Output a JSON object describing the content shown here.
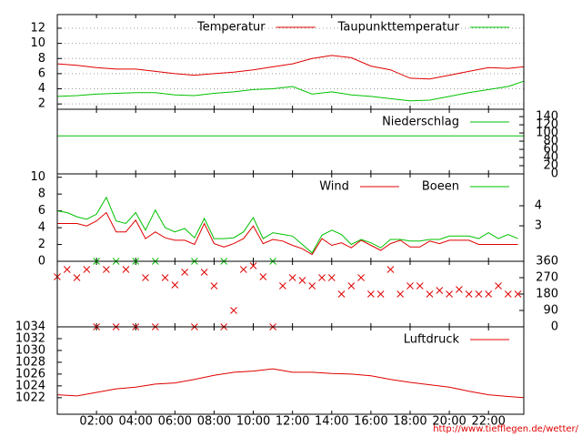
{
  "chart_data": [
    {
      "type": "line",
      "xlim": [
        0,
        23.8
      ],
      "ylim": [
        1.3,
        13.8
      ],
      "yticks": [
        2,
        4,
        6,
        8,
        10,
        12
      ],
      "grid": true,
      "x": [
        0,
        1,
        2,
        3,
        4,
        5,
        6,
        7,
        8,
        9,
        10,
        11,
        12,
        13,
        14,
        15,
        16,
        17,
        18,
        19,
        20,
        21,
        22,
        23,
        23.8
      ],
      "series": [
        {
          "name": "Temperatur",
          "color": "#e00000",
          "values": [
            7.3,
            7.1,
            6.8,
            6.6,
            6.6,
            6.3,
            6.0,
            5.8,
            6.0,
            6.2,
            6.5,
            6.9,
            7.3,
            8.0,
            8.4,
            8.1,
            7.0,
            6.5,
            5.4,
            5.3,
            5.8,
            6.3,
            6.8,
            6.7,
            6.9
          ]
        },
        {
          "name": "Taupunkttemperatur",
          "color": "#00c000",
          "values": [
            3.0,
            3.1,
            3.3,
            3.4,
            3.5,
            3.5,
            3.2,
            3.1,
            3.4,
            3.6,
            3.9,
            4.0,
            4.3,
            3.3,
            3.6,
            3.2,
            3.0,
            2.7,
            2.4,
            2.5,
            3.0,
            3.5,
            3.9,
            4.3,
            5.0
          ]
        }
      ]
    },
    {
      "type": "line",
      "xlim": [
        0,
        23.8
      ],
      "ylim": [
        0,
        158
      ],
      "yticks": [
        0,
        20,
        40,
        60,
        80,
        100,
        120,
        140
      ],
      "ytick_side": "right",
      "x": [
        0,
        23.8
      ],
      "series": [
        {
          "name": "Niederschlag",
          "color": "#00c000",
          "values": [
            93,
            93
          ]
        }
      ]
    },
    {
      "type": "line",
      "xlim": [
        0,
        23.8
      ],
      "ylim": [
        0,
        10.4
      ],
      "yticks": [
        0,
        2,
        4,
        6,
        8,
        10
      ],
      "y2lim": [
        1.23,
        5.59
      ],
      "y2ticks": [
        3,
        4
      ],
      "x": [
        0,
        0.5,
        1,
        1.5,
        2,
        2.5,
        3,
        3.5,
        4,
        4.5,
        5,
        5.5,
        6,
        6.5,
        7,
        7.5,
        8,
        8.5,
        9,
        9.5,
        10,
        10.5,
        11,
        11.5,
        12,
        12.5,
        13,
        13.5,
        14,
        14.5,
        15,
        15.5,
        16,
        16.5,
        17,
        17.5,
        18,
        18.5,
        19,
        19.5,
        20,
        20.5,
        21,
        21.5,
        22,
        22.5,
        23,
        23.5
      ],
      "series": [
        {
          "name": "Wind",
          "color": "#e00000",
          "values": [
            4.5,
            4.5,
            4.5,
            4.2,
            4.8,
            5.8,
            3.5,
            3.5,
            4.9,
            2.7,
            3.5,
            2.8,
            2.5,
            2.5,
            2.0,
            4.5,
            2.1,
            1.7,
            2.1,
            2.7,
            4.2,
            2.1,
            2.6,
            2.4,
            1.9,
            1.5,
            0.8,
            2.7,
            1.9,
            2.2,
            1.6,
            2.5,
            1.9,
            1.3,
            2.1,
            2.5,
            1.7,
            1.7,
            2.4,
            2.1,
            2.5,
            2.5,
            2.5,
            2.0,
            2.0,
            2.0,
            2.0,
            2.0
          ]
        },
        {
          "name": "Boeen",
          "color": "#00c000",
          "values": [
            6.0,
            5.8,
            5.3,
            5.0,
            5.6,
            7.6,
            4.8,
            4.5,
            5.8,
            3.7,
            6.1,
            4.0,
            3.5,
            3.9,
            2.8,
            5.1,
            2.7,
            2.7,
            2.8,
            3.5,
            5.2,
            2.7,
            3.4,
            3.2,
            3.0,
            2.0,
            1.0,
            3.1,
            3.7,
            3.2,
            2.0,
            2.6,
            2.2,
            1.6,
            2.6,
            2.6,
            2.4,
            2.4,
            2.6,
            2.6,
            3.0,
            3.0,
            3.0,
            2.7,
            3.4,
            2.7,
            3.2,
            2.7
          ]
        }
      ]
    },
    {
      "type": "scatter",
      "xlim": [
        0,
        23.8
      ],
      "ylim": [
        0,
        360
      ],
      "yticks": [
        0,
        90,
        180,
        270,
        360
      ],
      "ytick_side": "right",
      "series": [
        {
          "color": "#e00000",
          "x": [
            0,
            0.5,
            1,
            1.5,
            2,
            2.5,
            3,
            3.5,
            4,
            4.5,
            5,
            5.5,
            6,
            6.5,
            7,
            7.5,
            8,
            8.5,
            9,
            9.5,
            10,
            10.5,
            11,
            11.5,
            12,
            12.5,
            13,
            13.5,
            14,
            14.5,
            15,
            15.5,
            16,
            16.5,
            17,
            17.5,
            18,
            18.5,
            19,
            19.5,
            20,
            20.5,
            21,
            21.5,
            22,
            22.5,
            23,
            23.5
          ],
          "values": [
            275,
            315,
            270,
            315,
            0,
            315,
            0,
            315,
            0,
            270,
            0,
            270,
            230,
            300,
            0,
            300,
            225,
            0,
            90,
            315,
            335,
            275,
            0,
            225,
            270,
            255,
            225,
            270,
            270,
            180,
            225,
            270,
            180,
            180,
            315,
            180,
            225,
            225,
            180,
            200,
            180,
            205,
            180,
            180,
            180,
            225,
            180,
            180
          ]
        },
        {
          "color": "#00c000",
          "x": [
            2,
            3,
            4,
            5,
            7,
            8.5,
            11
          ],
          "values": [
            360,
            360,
            360,
            360,
            360,
            360,
            360
          ]
        }
      ]
    },
    {
      "type": "line",
      "xlim": [
        0,
        23.8
      ],
      "ylim": [
        1019.2,
        1034
      ],
      "yticks": [
        1022,
        1024,
        1026,
        1028,
        1030,
        1032,
        1034
      ],
      "x": [
        0,
        1,
        2,
        3,
        4,
        5,
        6,
        7,
        8,
        9,
        10,
        11,
        12,
        13,
        14,
        15,
        16,
        17,
        18,
        19,
        20,
        21,
        22,
        23,
        23.8
      ],
      "xticks": [
        {
          "value": 2,
          "label": "02:00"
        },
        {
          "value": 4,
          "label": "04:00"
        },
        {
          "value": 6,
          "label": "06:00"
        },
        {
          "value": 8,
          "label": "08:00"
        },
        {
          "value": 10,
          "label": "10:00"
        },
        {
          "value": 12,
          "label": "12:00"
        },
        {
          "value": 14,
          "label": "14:00"
        },
        {
          "value": 16,
          "label": "16:00"
        },
        {
          "value": 18,
          "label": "18:00"
        },
        {
          "value": 20,
          "label": "20:00"
        },
        {
          "value": 22,
          "label": "22:00"
        }
      ],
      "series": [
        {
          "name": "Luftdruck",
          "color": "#e00000",
          "values": [
            1022.5,
            1022.3,
            1022.9,
            1023.5,
            1023.8,
            1024.3,
            1024.5,
            1025.1,
            1025.8,
            1026.3,
            1026.5,
            1026.9,
            1026.3,
            1026.3,
            1026.1,
            1026.0,
            1025.7,
            1025.1,
            1024.6,
            1024.2,
            1023.8,
            1023.1,
            1022.5,
            1022.2,
            1022.0
          ]
        }
      ]
    }
  ],
  "footer": "http://www.tiefflegen.de/wetter/"
}
